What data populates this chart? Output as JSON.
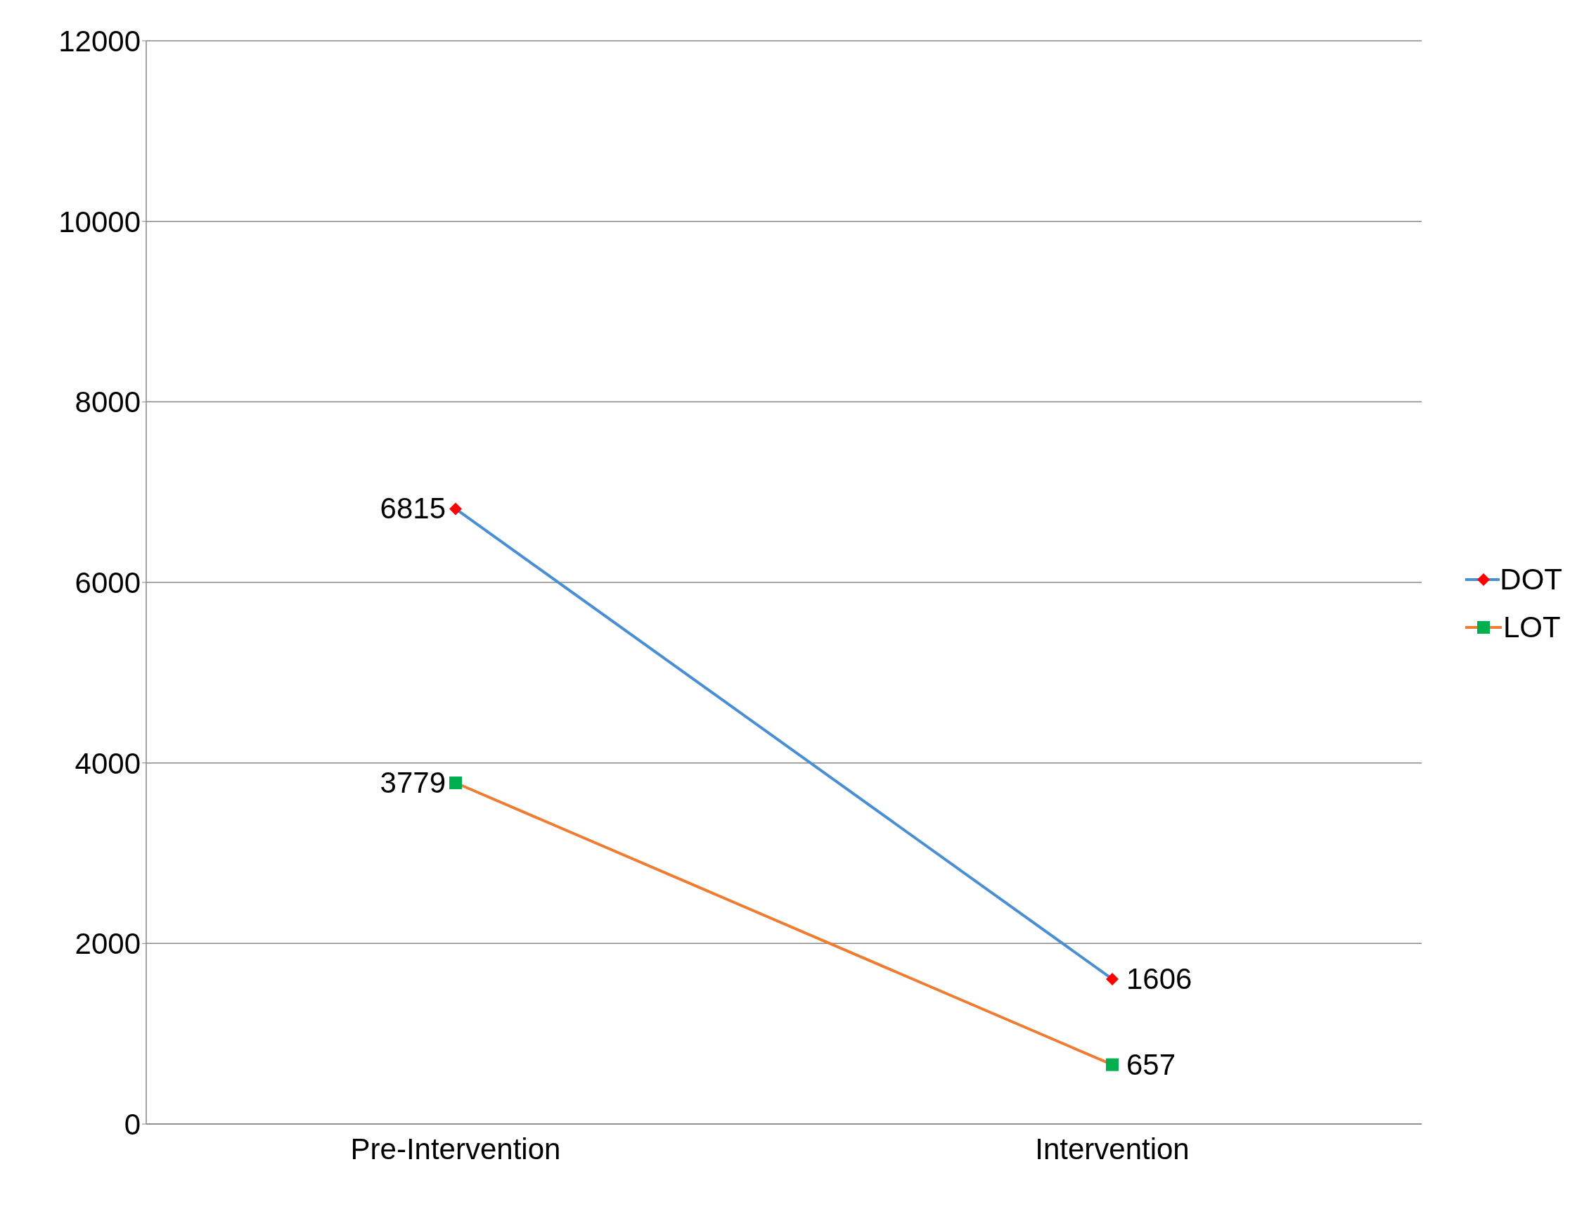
{
  "chart_data": {
    "type": "line",
    "categories": [
      "Pre-Intervention",
      "Intervention"
    ],
    "series": [
      {
        "name": "DOT",
        "color": "#4a8fd4",
        "colors": [
          "#ff0000",
          "#ff0000"
        ],
        "marker": "diamond",
        "values": [
          6815,
          1606
        ]
      },
      {
        "name": "LOT",
        "color": "#ed7d31",
        "colors": [
          "#00b050",
          "#00b050"
        ],
        "marker": "square",
        "values": [
          3779,
          657
        ]
      }
    ],
    "ylim": [
      0,
      12000
    ],
    "yticks": [
      0,
      2000,
      4000,
      6000,
      8000,
      10000,
      12000
    ],
    "grid": "y",
    "legend": "right",
    "data_labels": true,
    "line_style": "solid"
  }
}
